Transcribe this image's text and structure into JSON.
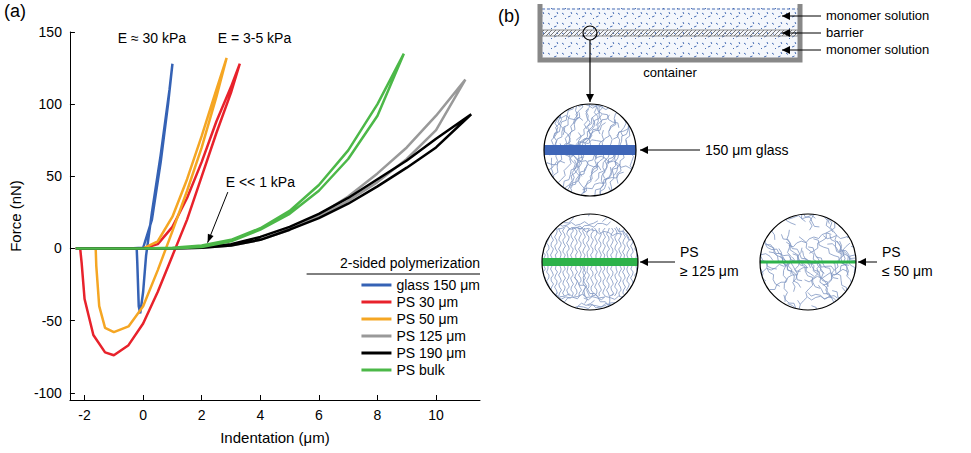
{
  "chart_data": {
    "type": "line",
    "panel_label": "(a)",
    "x_label": "Indentation (μm)",
    "y_label": "Force (nN)",
    "xlim": [
      -2.5,
      11.5
    ],
    "xticks": [
      -2,
      0,
      2,
      4,
      6,
      8,
      10
    ],
    "ylim": [
      -105,
      150
    ],
    "yticks": [
      -100,
      -50,
      0,
      50,
      100,
      150
    ],
    "grid": false,
    "legend": "lower right",
    "legend_title": "2-sided polymerization",
    "annotations": [
      {
        "text": "E ≈ 30 kPa",
        "x": 0.3,
        "y": 146
      },
      {
        "text": "E = 3-5 kPa",
        "x": 3.8,
        "y": 146
      },
      {
        "text": "E << 1 kPa",
        "x": 4.0,
        "y": 46,
        "arrow_to": [
          2.2,
          4
        ]
      }
    ],
    "series": [
      {
        "name": "glass 150 μm",
        "color": "#3562b5",
        "x": [
          -2.3,
          -0.5,
          0,
          0.3,
          0.6,
          0.85,
          1.0,
          0.9,
          0.6,
          0.3,
          0.1,
          0,
          -0.1,
          -0.15,
          -0.2,
          -0.22,
          -2.3
        ],
        "values": [
          0,
          0,
          0.5,
          20,
          60,
          100,
          128,
          110,
          65,
          25,
          -5,
          -30,
          -45,
          -40,
          -10,
          0,
          0
        ]
      },
      {
        "name": "PS 30 μm",
        "color": "#e8222b",
        "x": [
          -2.3,
          0,
          0.5,
          1,
          1.5,
          2,
          2.5,
          3,
          3.3,
          3,
          2.5,
          2,
          1.5,
          1,
          0.5,
          0,
          -0.5,
          -1,
          -1.3,
          -1.7,
          -2,
          -2.1,
          -2.15,
          -2.3
        ],
        "values": [
          0,
          0,
          3,
          15,
          35,
          60,
          88,
          112,
          128,
          108,
          80,
          50,
          20,
          -5,
          -30,
          -52,
          -67,
          -74,
          -72,
          -60,
          -35,
          -10,
          0,
          0
        ]
      },
      {
        "name": "PS 50 μm",
        "color": "#f5a623",
        "x": [
          -2.3,
          0,
          0.5,
          1,
          1.5,
          2,
          2.5,
          2.85,
          2.5,
          2,
          1.5,
          1,
          0.5,
          0,
          -0.5,
          -1,
          -1.3,
          -1.5,
          -1.6,
          -1.62,
          -2.3
        ],
        "values": [
          0,
          0,
          5,
          22,
          48,
          78,
          110,
          132,
          105,
          70,
          40,
          12,
          -15,
          -40,
          -54,
          -58,
          -55,
          -40,
          -12,
          0,
          0
        ]
      },
      {
        "name": "PS 125 μm",
        "color": "#999999",
        "x": [
          -2.3,
          0,
          1,
          2,
          3,
          4,
          5,
          6,
          7,
          8,
          9,
          10,
          11,
          10,
          9,
          8,
          7,
          6,
          5,
          4,
          3,
          2,
          1,
          0
        ],
        "values": [
          0,
          0,
          0,
          0.5,
          2,
          6,
          13,
          23,
          36,
          52,
          70,
          92,
          117,
          82,
          62,
          46,
          33,
          22,
          13,
          6,
          2,
          0.5,
          0,
          0
        ]
      },
      {
        "name": "PS 190 μm",
        "color": "#000000",
        "x": [
          -2.3,
          0,
          1,
          2,
          3,
          4,
          5,
          6,
          7,
          8,
          9,
          10,
          11.2,
          10,
          9,
          8,
          7,
          6,
          5,
          4,
          3,
          2,
          1,
          0
        ],
        "values": [
          0,
          0,
          0,
          1,
          3,
          8,
          15,
          24,
          35,
          48,
          61,
          76,
          93,
          70,
          56,
          43,
          31,
          21,
          13,
          6,
          2,
          0.5,
          0,
          0
        ]
      },
      {
        "name": "PS bulk",
        "color": "#4cb848",
        "x": [
          -2.3,
          0,
          1,
          2,
          3,
          4,
          5,
          6,
          7,
          8,
          8.9,
          8,
          7,
          6,
          5,
          4,
          3,
          2,
          1,
          0
        ],
        "values": [
          0,
          0,
          0.5,
          2,
          6,
          14,
          26,
          44,
          68,
          100,
          135,
          92,
          62,
          40,
          24,
          13,
          5,
          1,
          0,
          0
        ]
      }
    ]
  },
  "diagram": {
    "panel_label": "(b)",
    "solution_top": "monomer solution",
    "barrier": "barrier",
    "solution_bottom": "monomer solution",
    "container": "container",
    "details": [
      {
        "label": "150 μm glass"
      },
      {
        "label": "PS ≥ 125 μm"
      },
      {
        "label": "PS ≤ 50 μm"
      }
    ]
  }
}
